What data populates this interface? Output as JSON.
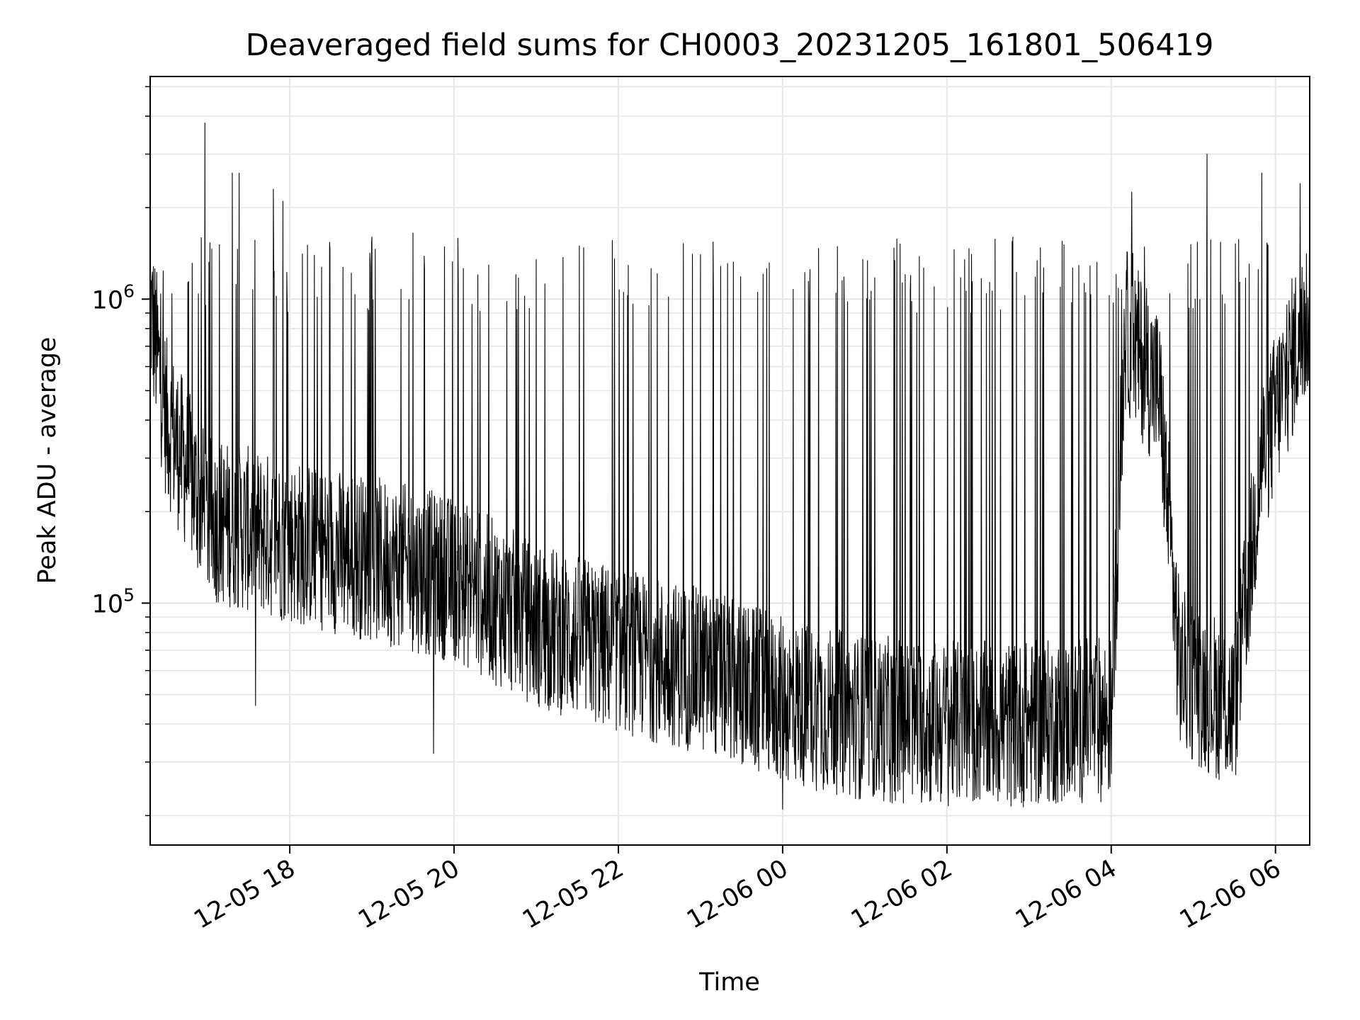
{
  "chart_data": {
    "type": "line",
    "title": "Deaveraged field sums for CH0003_20231205_161801_506419",
    "xlabel": "Time",
    "ylabel": "Peak ADU - average",
    "yscale": "log",
    "ylim": [
      16000,
      5400000
    ],
    "xlim": [
      "2023-12-05T16:18:01",
      "2023-12-06T06:25:00"
    ],
    "grid": true,
    "line_color": "#000000",
    "grid_color": "#e6e6e6",
    "x_ticks": [
      {
        "value": "2023-12-05T18:00:00",
        "label": "12-05 18"
      },
      {
        "value": "2023-12-05T20:00:00",
        "label": "12-05 20"
      },
      {
        "value": "2023-12-05T22:00:00",
        "label": "12-05 22"
      },
      {
        "value": "2023-12-06T00:00:00",
        "label": "12-06 00"
      },
      {
        "value": "2023-12-06T02:00:00",
        "label": "12-06 02"
      },
      {
        "value": "2023-12-06T04:00:00",
        "label": "12-06 04"
      },
      {
        "value": "2023-12-06T06:00:00",
        "label": "12-06 06"
      }
    ],
    "y_ticks": [
      {
        "value": 100000,
        "base": "10",
        "exp": "5"
      },
      {
        "value": 1000000,
        "base": "10",
        "exp": "6"
      }
    ],
    "series": [
      {
        "baseline_profile": [
          [
            "2023-12-05T16:18:01",
            950000
          ],
          [
            "2023-12-05T16:30:00",
            400000
          ],
          [
            "2023-12-05T17:00:00",
            190000
          ],
          [
            "2023-12-05T18:00:00",
            160000
          ],
          [
            "2023-12-05T19:00:00",
            140000
          ],
          [
            "2023-12-05T20:00:00",
            120000
          ],
          [
            "2023-12-05T21:00:00",
            85000
          ],
          [
            "2023-12-05T22:00:00",
            70000
          ],
          [
            "2023-12-05T23:00:00",
            60000
          ],
          [
            "2023-12-06T00:00:00",
            48000
          ],
          [
            "2023-12-06T01:00:00",
            42000
          ],
          [
            "2023-12-06T02:00:00",
            40000
          ],
          [
            "2023-12-06T03:00:00",
            40000
          ],
          [
            "2023-12-06T04:00:00",
            42000
          ],
          [
            "2023-12-06T04:10:00",
            800000
          ],
          [
            "2023-12-06T04:35:00",
            500000
          ],
          [
            "2023-12-06T04:50:00",
            60000
          ],
          [
            "2023-12-06T05:30:00",
            45000
          ],
          [
            "2023-12-06T05:50:00",
            300000
          ],
          [
            "2023-12-06T06:15:00",
            700000
          ],
          [
            "2023-12-06T06:25:00",
            900000
          ]
        ],
        "peaks": [
          [
            "2023-12-05T16:58:00",
            3800000
          ],
          [
            "2023-12-05T17:18:00",
            2600000
          ],
          [
            "2023-12-05T17:23:00",
            2600000
          ],
          [
            "2023-12-05T17:48:00",
            2300000
          ],
          [
            "2023-12-05T17:55:00",
            2100000
          ],
          [
            "2023-12-05T19:00:00",
            1600000
          ],
          [
            "2023-12-05T19:30:00",
            1650000
          ],
          [
            "2023-12-05T21:00:00",
            1350000
          ],
          [
            "2023-12-05T23:00:00",
            1400000
          ],
          [
            "2023-12-06T00:20:00",
            1250000
          ],
          [
            "2023-12-06T03:10:00",
            1050000
          ],
          [
            "2023-12-06T04:15:00",
            2250000
          ],
          [
            "2023-12-06T05:10:00",
            3000000
          ],
          [
            "2023-12-06T05:50:00",
            2600000
          ],
          [
            "2023-12-06T06:18:00",
            2400000
          ]
        ],
        "minima": [
          [
            "2023-12-05T17:35:00",
            46000
          ],
          [
            "2023-12-05T19:45:00",
            32000
          ],
          [
            "2023-12-06T00:00:00",
            21000
          ],
          [
            "2023-12-06T01:20:00",
            22000
          ],
          [
            "2023-12-06T02:30:00",
            24000
          ],
          [
            "2023-12-06T05:25:00",
            29000
          ]
        ]
      }
    ]
  }
}
